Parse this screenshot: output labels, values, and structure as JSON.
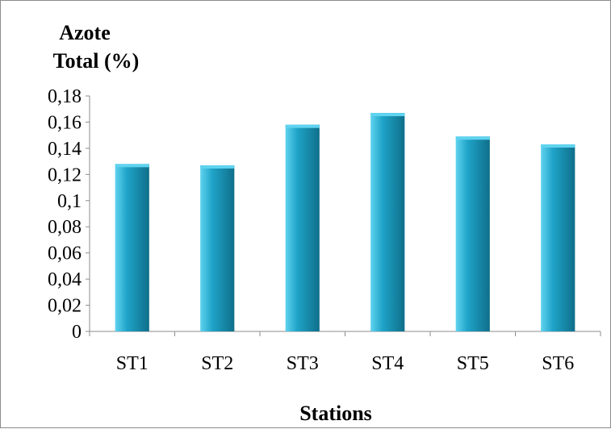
{
  "chart_data": {
    "type": "bar",
    "title": "",
    "ylabel_lines": [
      "Azote",
      "Total (%)"
    ],
    "xlabel": "Stations",
    "categories": [
      "ST1",
      "ST2",
      "ST3",
      "ST4",
      "ST5",
      "ST6"
    ],
    "values": [
      0.128,
      0.127,
      0.158,
      0.167,
      0.149,
      0.143
    ],
    "ylim": [
      0,
      0.18
    ],
    "yticks": [
      0,
      0.02,
      0.04,
      0.06,
      0.08,
      0.1,
      0.12,
      0.14,
      0.16,
      0.18
    ],
    "ytick_labels": [
      "0",
      "0,02",
      "0,04",
      "0,06",
      "0,08",
      "0,1",
      "0,12",
      "0,14",
      "0,16",
      "0,18"
    ],
    "grid": false,
    "legend": "none",
    "bar_color": "#1fa3c8",
    "bar_highlight_color": "#5fd3ef",
    "bar_shadow_color": "#0f6f8a"
  }
}
